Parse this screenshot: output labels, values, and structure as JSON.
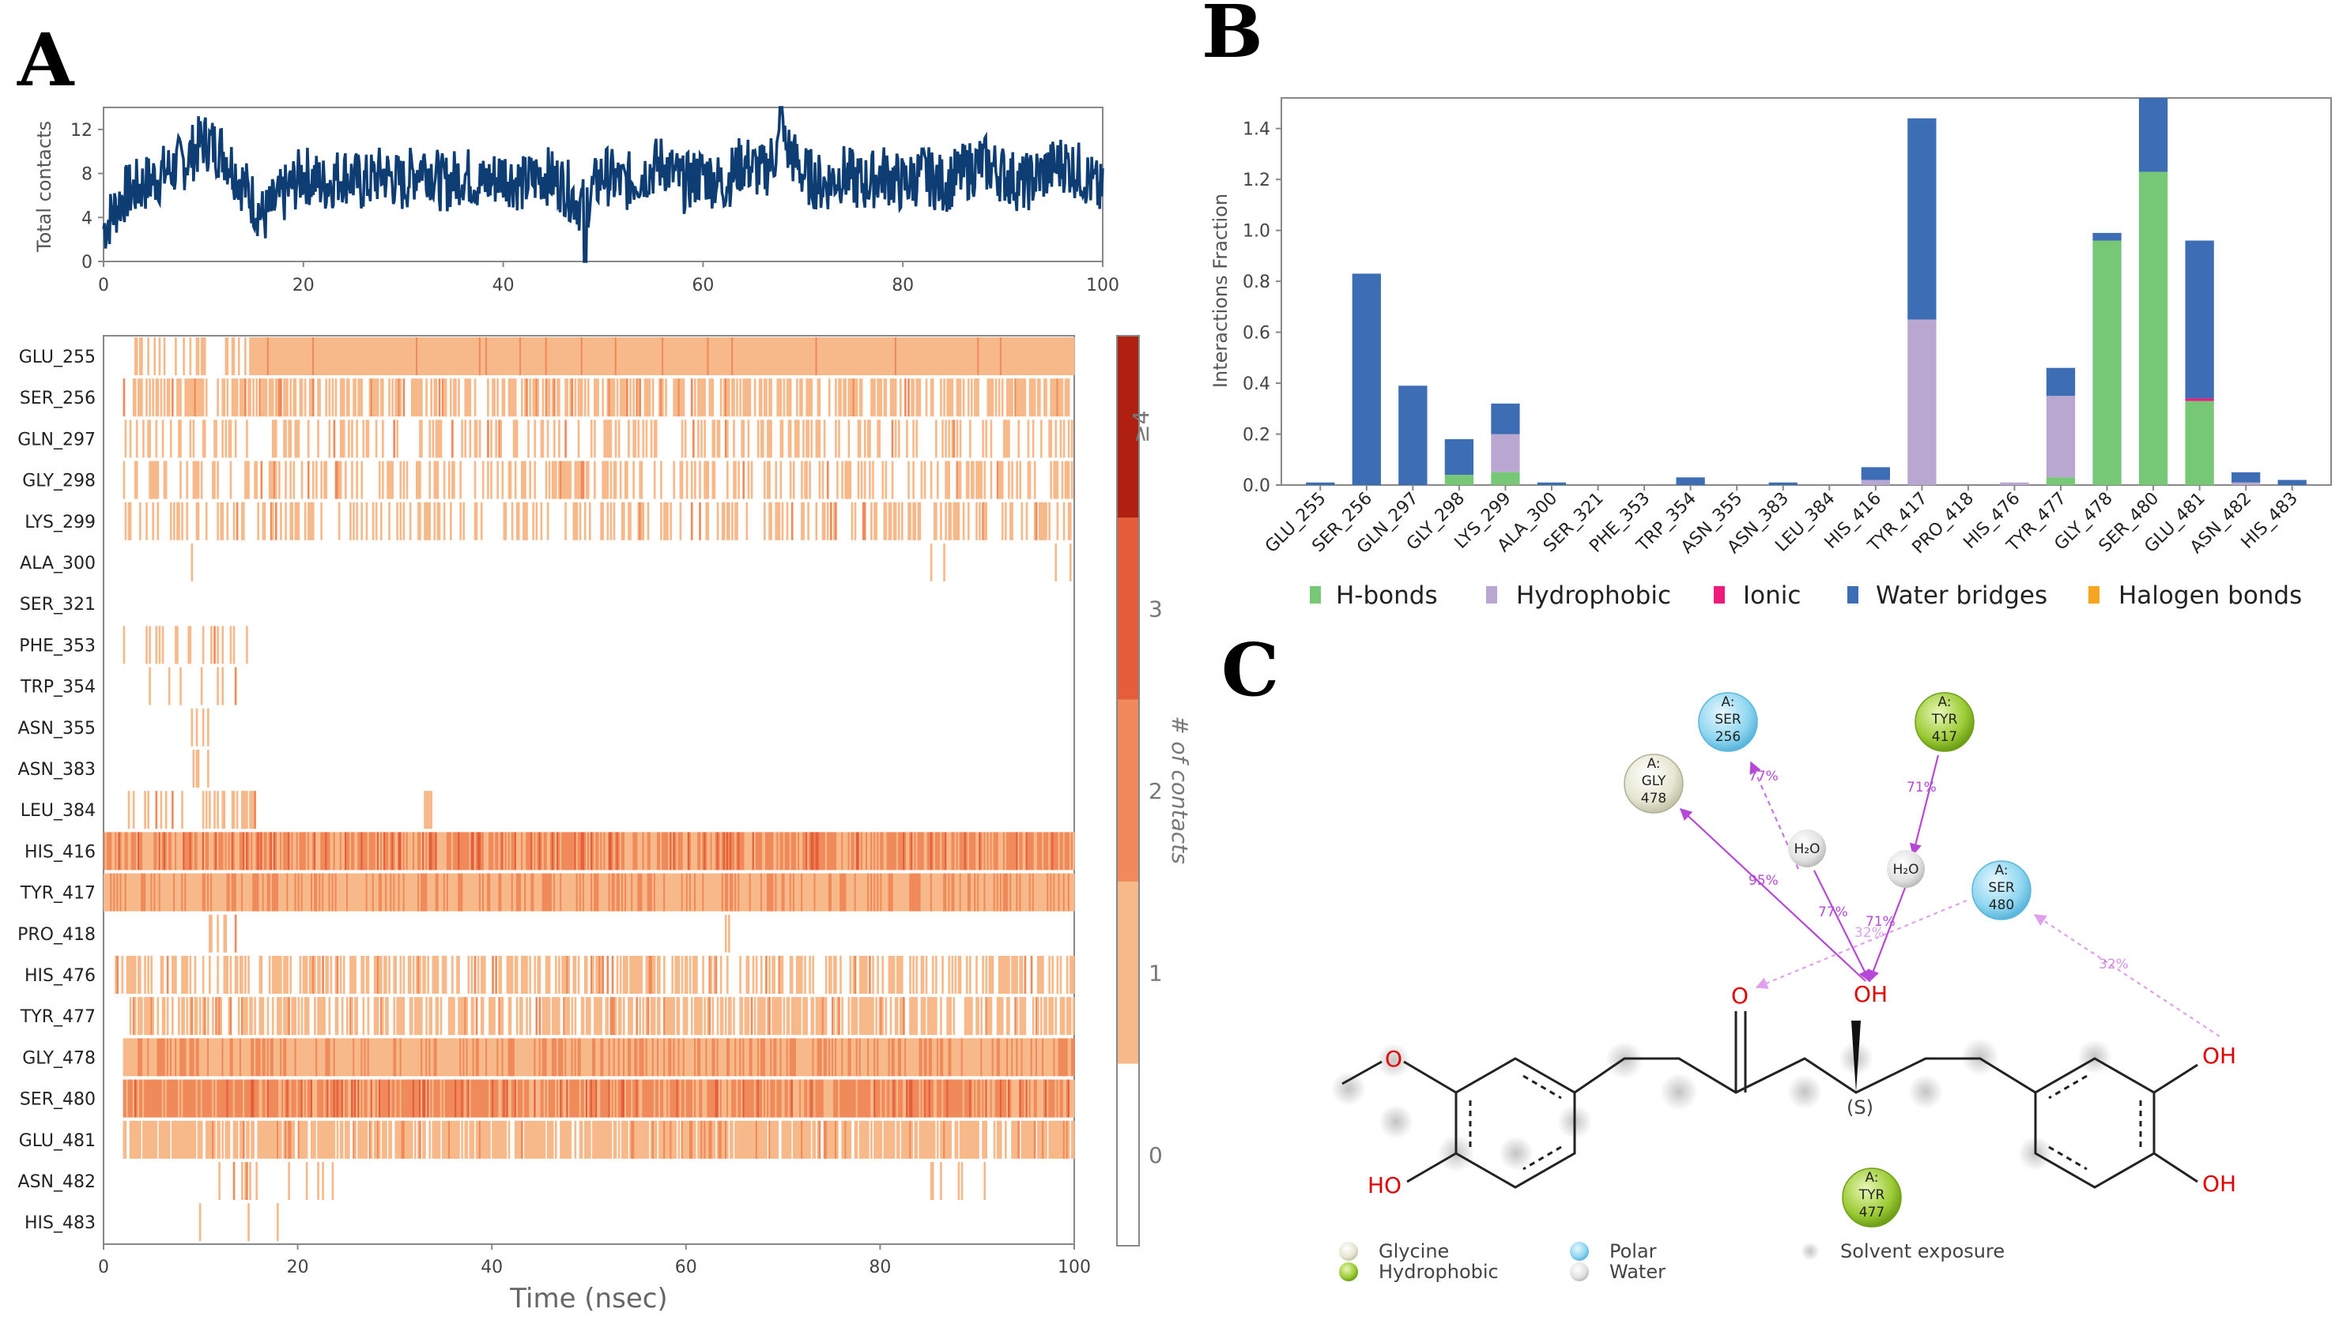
{
  "panels": {
    "a": "A",
    "b": "B",
    "c": "C"
  },
  "colors": {
    "line": "#0d3d73",
    "c0": "#ffffff",
    "c1": "#f7b88a",
    "c2": "#f08a5a",
    "c3": "#e45e3b",
    "c4": "#b02010",
    "hbond": "#76c776",
    "hydrophobic": "#b9a7d1",
    "ionic": "#ee1a7a",
    "water": "#3d6db5",
    "halogen": "#f7a520",
    "arrow": "#b648d8"
  },
  "chart_data": [
    {
      "type": "line",
      "title": "",
      "ylabel": "Total contacts",
      "xlabel": "",
      "xlim": [
        0,
        100
      ],
      "ylim": [
        0,
        14
      ],
      "xticks": [
        "0",
        "20",
        "40",
        "60",
        "80",
        "100"
      ],
      "yticks": [
        "0",
        "4",
        "8",
        "12"
      ],
      "series": [
        {
          "name": "Total contacts",
          "x": [
            0,
            2,
            4,
            6,
            8,
            10,
            12,
            14,
            16,
            18,
            20,
            22,
            24,
            26,
            28,
            30,
            32,
            34,
            36,
            38,
            40,
            42,
            44,
            46,
            48,
            50,
            52,
            54,
            56,
            58,
            60,
            62,
            64,
            66,
            68,
            70,
            72,
            74,
            76,
            78,
            80,
            82,
            84,
            86,
            88,
            90,
            92,
            94,
            96,
            98,
            100
          ],
          "values": [
            3,
            6,
            7,
            8,
            9,
            11,
            10,
            7,
            4,
            6,
            8,
            7,
            8,
            7,
            8,
            7,
            9,
            7,
            8,
            7,
            8,
            7,
            8,
            7,
            5,
            8,
            7,
            8,
            9,
            7,
            8,
            7,
            9,
            8,
            11,
            8,
            7,
            8,
            7,
            8,
            7,
            8,
            7,
            8,
            9,
            8,
            7,
            8,
            9,
            8,
            6
          ]
        }
      ]
    },
    {
      "type": "heatmap",
      "title": "",
      "xlabel": "Time (nsec)",
      "ylabel": "",
      "xlim": [
        0,
        100
      ],
      "xticks": [
        "0",
        "20",
        "40",
        "60",
        "80",
        "100"
      ],
      "colorbar_label": "# of contacts",
      "colorbar_ticks": [
        "0",
        "1",
        "2",
        "3",
        "≥4"
      ],
      "rows": [
        "GLU_255",
        "SER_256",
        "GLN_297",
        "GLY_298",
        "LYS_299",
        "ALA_300",
        "SER_321",
        "PHE_353",
        "TRP_354",
        "ASN_355",
        "ASN_383",
        "LEU_384",
        "HIS_416",
        "TYR_417",
        "PRO_418",
        "HIS_476",
        "TYR_477",
        "GLY_478",
        "SER_480",
        "GLU_481",
        "ASN_482",
        "HIS_483"
      ],
      "segments": [
        [
          [
            2,
            15,
            0.3
          ],
          [
            15,
            100,
            1.0
          ]
        ],
        [
          [
            2,
            100,
            0.55
          ]
        ],
        [
          [
            2,
            100,
            0.3
          ]
        ],
        [
          [
            2,
            100,
            0.35
          ]
        ],
        [
          [
            2,
            100,
            0.3
          ]
        ],
        [
          [
            2,
            100,
            0.02
          ]
        ],
        [],
        [
          [
            2,
            15,
            0.3
          ]
        ],
        [
          [
            2,
            15,
            0.08
          ]
        ],
        [
          [
            9,
            11,
            0.4
          ]
        ],
        [
          [
            9,
            11,
            0.4
          ]
        ],
        [
          [
            2,
            16,
            0.3
          ],
          [
            33,
            34,
            0.5
          ]
        ],
        [
          [
            0,
            100,
            1.6
          ]
        ],
        [
          [
            0,
            100,
            1.3
          ]
        ],
        [
          [
            10,
            16,
            0.15
          ],
          [
            64,
            65,
            0.5
          ]
        ],
        [
          [
            1,
            100,
            0.5
          ]
        ],
        [
          [
            2,
            100,
            0.55
          ]
        ],
        [
          [
            2,
            100,
            1.3
          ]
        ],
        [
          [
            2,
            100,
            1.7
          ]
        ],
        [
          [
            2,
            100,
            0.8
          ]
        ],
        [
          [
            10,
            25,
            0.15
          ],
          [
            85,
            91,
            0.2
          ]
        ],
        [
          [
            2,
            20,
            0.05
          ]
        ]
      ]
    },
    {
      "type": "bar",
      "title": "",
      "xlabel": "",
      "ylabel": "Interactions Fraction",
      "ylim": [
        0,
        1.52
      ],
      "yticks": [
        "0.0",
        "0.2",
        "0.4",
        "0.6",
        "0.8",
        "1.0",
        "1.2",
        "1.4"
      ],
      "legend_position": "bottom",
      "categories": [
        "GLU_255",
        "SER_256",
        "GLN_297",
        "GLY_298",
        "LYS_299",
        "ALA_300",
        "SER_321",
        "PHE_353",
        "TRP_354",
        "ASN_355",
        "ASN_383",
        "LEU_384",
        "HIS_416",
        "TYR_417",
        "PRO_418",
        "HIS_476",
        "TYR_477",
        "GLY_478",
        "SER_480",
        "GLU_481",
        "ASN_482",
        "HIS_483"
      ],
      "series": [
        {
          "name": "H-bonds",
          "values": [
            0,
            0,
            0,
            0.04,
            0.05,
            0,
            0,
            0,
            0,
            0,
            0,
            0,
            0,
            0,
            0,
            0,
            0.03,
            0.96,
            1.23,
            0.33,
            0,
            0
          ]
        },
        {
          "name": "Hydrophobic",
          "values": [
            0,
            0,
            0,
            0,
            0.15,
            0,
            0,
            0,
            0,
            0,
            0,
            0,
            0.02,
            0.65,
            0,
            0.01,
            0.32,
            0,
            0,
            0,
            0.01,
            0
          ]
        },
        {
          "name": "Ionic",
          "values": [
            0,
            0,
            0,
            0,
            0,
            0,
            0,
            0,
            0,
            0,
            0,
            0,
            0,
            0,
            0,
            0,
            0,
            0,
            0,
            0.01,
            0,
            0
          ]
        },
        {
          "name": "Water bridges",
          "values": [
            0.01,
            0.83,
            0.39,
            0.14,
            0.12,
            0.01,
            0,
            0,
            0.03,
            0,
            0.01,
            0,
            0.05,
            0.79,
            0,
            0,
            0.11,
            0.03,
            0.29,
            0.62,
            0.04,
            0.02
          ]
        },
        {
          "name": "Halogen bonds",
          "values": [
            0,
            0,
            0,
            0,
            0,
            0,
            0,
            0,
            0,
            0,
            0,
            0,
            0,
            0,
            0,
            0,
            0,
            0,
            0,
            0,
            0,
            0
          ]
        }
      ]
    }
  ],
  "diagram": {
    "residues": [
      {
        "chain": "A:",
        "name": "SER",
        "num": "256",
        "kind": "polar"
      },
      {
        "chain": "A:",
        "name": "TYR",
        "num": "417",
        "kind": "hydrophobic"
      },
      {
        "chain": "A:",
        "name": "GLY",
        "num": "478",
        "kind": "glycine"
      },
      {
        "chain": "A:",
        "name": "SER",
        "num": "480",
        "kind": "polar"
      },
      {
        "chain": "A:",
        "name": "TYR",
        "num": "477",
        "kind": "hydrophobic"
      }
    ],
    "water": "H₂O",
    "percentages": {
      "p95": "95%",
      "p77a": "77%",
      "p77b": "77%",
      "p71a": "71%",
      "p71b": "71%",
      "p32a": "32%",
      "p32b": "32%"
    },
    "atoms": {
      "o_methoxy": "O",
      "o_keto": "O",
      "oh_center": "OH",
      "ho_left": "HO",
      "oh_right_top": "OH",
      "oh_right_bottom": "OH",
      "stereo": "(S)"
    },
    "legend": {
      "glycine": "Glycine",
      "hydrophobic": "Hydrophobic",
      "polar": "Polar",
      "water": "Water",
      "solvent": "Solvent exposure"
    }
  }
}
